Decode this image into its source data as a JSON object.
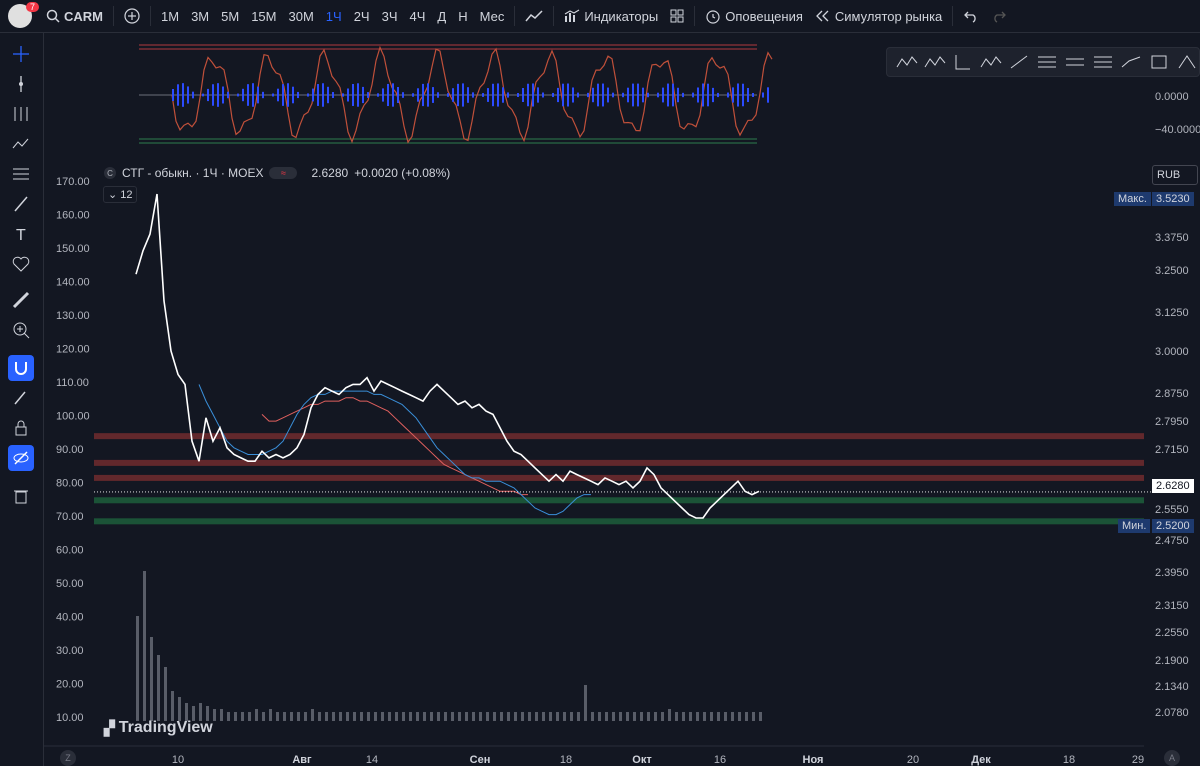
{
  "topbar": {
    "notification_count": "7",
    "symbol": "CARM",
    "timeframes": [
      "1М",
      "3М",
      "5М",
      "15М",
      "30М",
      "1Ч",
      "2Ч",
      "3Ч",
      "4Ч",
      "Д",
      "Н",
      "Мес"
    ],
    "active_timeframe": "1Ч",
    "indicators_label": "Индикаторы",
    "alerts_label": "Оповещения",
    "simulator_label": "Симулятор рынка"
  },
  "legend": {
    "symbol_name": "СТГ - обыкн. · 1Ч · MOEX",
    "circle": "С",
    "price": "2.6280",
    "change": "+0.0020 (+0.08%)",
    "collapse_count": "12"
  },
  "currency": "RUB",
  "price_tags": {
    "max_label": "Макс.",
    "max_value": "3.5230",
    "current_value": "2.6280",
    "min_label": "Мин.",
    "min_value": "2.5200"
  },
  "oscillator_axis": [
    "0.0000",
    "−40.0000"
  ],
  "logo_text": "TradingView",
  "z_button": "Z",
  "a_button": "A",
  "colors": {
    "background": "#131722",
    "accent": "#2962ff",
    "red_zone": "#b2383e",
    "green_zone": "#2e7d4f"
  },
  "chart_data": {
    "type": "line",
    "left_axis_ticks": [
      "170.00",
      "160.00",
      "150.00",
      "140.00",
      "130.00",
      "120.00",
      "110.00",
      "100.00",
      "90.00",
      "80.00",
      "70.00",
      "60.00",
      "50.00",
      "40.00",
      "30.00",
      "20.00",
      "10.00"
    ],
    "right_axis_ticks": [
      "3.3750",
      "3.2500",
      "3.1250",
      "3.0000",
      "2.8750",
      "2.7950",
      "2.7150",
      "2.5550",
      "2.4750",
      "2.3950",
      "2.3150",
      "2.2550",
      "2.1900",
      "2.1340",
      "2.0780"
    ],
    "x_ticks": [
      {
        "label": "10",
        "bold": false
      },
      {
        "label": "Авг",
        "bold": true
      },
      {
        "label": "14",
        "bold": false
      },
      {
        "label": "Сен",
        "bold": true
      },
      {
        "label": "18",
        "bold": false
      },
      {
        "label": "Окт",
        "bold": true
      },
      {
        "label": "16",
        "bold": false
      },
      {
        "label": "Ноя",
        "bold": true
      },
      {
        "label": "20",
        "bold": false
      },
      {
        "label": "Дек",
        "bold": true
      },
      {
        "label": "18",
        "bold": false
      },
      {
        "label": "29",
        "bold": false
      }
    ],
    "price_series": {
      "name": "",
      "values": [
        3.28,
        3.35,
        3.4,
        3.52,
        3.2,
        3.05,
        2.98,
        2.95,
        2.78,
        2.72,
        2.85,
        2.78,
        2.82,
        2.76,
        2.74,
        2.73,
        2.72,
        2.72,
        2.75,
        2.73,
        2.74,
        2.73,
        2.74,
        2.76,
        2.8,
        2.88,
        2.92,
        2.94,
        2.93,
        2.92,
        2.94,
        2.95,
        2.95,
        2.97,
        2.93,
        2.96,
        2.95,
        2.94,
        2.93,
        2.92,
        2.91,
        2.9,
        2.93,
        2.95,
        2.93,
        2.91,
        2.89,
        2.9,
        2.88,
        2.89,
        2.87,
        2.86,
        2.82,
        2.78,
        2.75,
        2.74,
        2.72,
        2.7,
        2.68,
        2.66,
        2.68,
        2.66,
        2.69,
        2.68,
        2.67,
        2.66,
        2.65,
        2.67,
        2.66,
        2.65,
        2.66,
        2.64,
        2.66,
        2.7,
        2.68,
        2.64,
        2.62,
        2.6,
        2.58,
        2.56,
        2.55,
        2.55,
        2.58,
        2.6,
        2.62,
        2.64,
        2.66,
        2.63,
        2.62,
        2.63
      ]
    },
    "ma_blue": {
      "values": [
        null,
        null,
        null,
        null,
        null,
        null,
        null,
        null,
        null,
        2.95,
        2.9,
        2.86,
        2.82,
        2.78,
        2.76,
        2.75,
        2.74,
        2.74,
        2.74,
        2.75,
        2.76,
        2.78,
        2.82,
        2.86,
        2.89,
        2.91,
        2.92,
        2.92,
        2.93,
        2.93,
        2.93,
        2.93,
        2.93,
        2.93,
        2.92,
        2.92,
        2.91,
        2.9,
        2.89,
        2.87,
        2.85,
        2.82,
        2.79,
        2.76,
        2.74,
        2.72,
        2.7,
        2.68,
        2.67,
        2.67,
        2.66,
        2.66,
        2.66,
        2.65,
        2.64,
        2.62,
        2.6,
        2.58,
        2.57,
        2.56,
        2.56,
        2.57,
        2.59,
        2.61,
        2.62,
        2.62
      ]
    },
    "ma_red": {
      "values": [
        null,
        null,
        null,
        null,
        null,
        null,
        null,
        null,
        null,
        null,
        null,
        null,
        null,
        null,
        null,
        null,
        null,
        null,
        2.86,
        2.84,
        2.84,
        2.85,
        2.86,
        2.87,
        2.88,
        2.89,
        2.89,
        2.9,
        2.9,
        2.9,
        2.91,
        2.91,
        2.9,
        2.9,
        2.89,
        2.88,
        2.87,
        2.85,
        2.83,
        2.81,
        2.79,
        2.77,
        2.75,
        2.73,
        2.71,
        2.7,
        2.69,
        2.68,
        2.67,
        2.66,
        2.65,
        2.64,
        2.63,
        2.63,
        2.63,
        2.62,
        2.62
      ]
    },
    "volume": [
      35,
      50,
      28,
      22,
      18,
      10,
      8,
      6,
      5,
      6,
      5,
      4,
      4,
      3,
      3,
      3,
      3,
      4,
      3,
      4,
      3,
      3,
      3,
      3,
      3,
      4,
      3,
      3,
      3,
      3,
      3,
      3,
      3,
      3,
      3,
      3,
      3,
      3,
      3,
      3,
      3,
      3,
      3,
      3,
      3,
      3,
      3,
      3,
      3,
      3,
      3,
      3,
      3,
      3,
      3,
      3,
      3,
      3,
      3,
      3,
      3,
      3,
      3,
      3,
      12,
      3,
      3,
      3,
      3,
      3,
      3,
      3,
      3,
      3,
      3,
      3,
      4,
      3,
      3,
      3,
      3,
      3,
      3,
      3,
      3,
      3,
      3,
      3,
      3,
      3
    ],
    "zones": [
      {
        "type": "red",
        "price": 2.795
      },
      {
        "type": "red",
        "price": 2.715
      },
      {
        "type": "red",
        "price": 2.67
      },
      {
        "type": "green",
        "price": 2.603
      },
      {
        "type": "green",
        "price": 2.54
      }
    ]
  }
}
